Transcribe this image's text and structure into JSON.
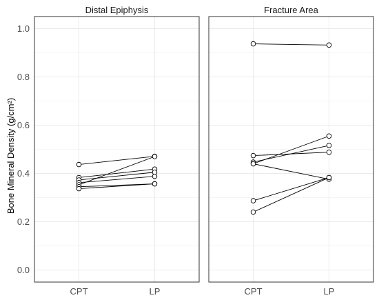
{
  "chart_data": {
    "type": "line",
    "ylabel": "Bone Mineral Density (g/cm²)",
    "ylim": [
      -0.05,
      1.05
    ],
    "yticks": [
      0.0,
      0.2,
      0.4,
      0.6,
      0.8,
      1.0
    ],
    "ytick_labels": [
      "0.0",
      "0.2",
      "0.4",
      "0.6",
      "0.8",
      "1.0"
    ],
    "categories": [
      "CPT",
      "LP"
    ],
    "grid": true,
    "colors": {
      "line": "#000000",
      "marker_fill": "#ffffff",
      "grid": "#ebebeb",
      "panel_border": "#333333"
    },
    "panels": [
      {
        "title": "Distal Epiphysis",
        "series": [
          {
            "values": [
              0.437,
              0.471
            ]
          },
          {
            "values": [
              0.383,
              0.418
            ]
          },
          {
            "values": [
              0.373,
              0.405
            ]
          },
          {
            "values": [
              0.362,
              0.388
            ]
          },
          {
            "values": [
              0.353,
              0.47
            ]
          },
          {
            "values": [
              0.345,
              0.357
            ]
          },
          {
            "values": [
              0.337,
              0.357
            ]
          }
        ]
      },
      {
        "title": "Fracture Area",
        "series": [
          {
            "values": [
              0.937,
              0.932
            ]
          },
          {
            "values": [
              0.474,
              0.488
            ]
          },
          {
            "values": [
              0.447,
              0.516
            ]
          },
          {
            "values": [
              0.44,
              0.555
            ]
          },
          {
            "values": [
              0.44,
              0.376
            ]
          },
          {
            "values": [
              0.287,
              0.383
            ]
          },
          {
            "values": [
              0.24,
              0.383
            ]
          }
        ]
      }
    ]
  }
}
